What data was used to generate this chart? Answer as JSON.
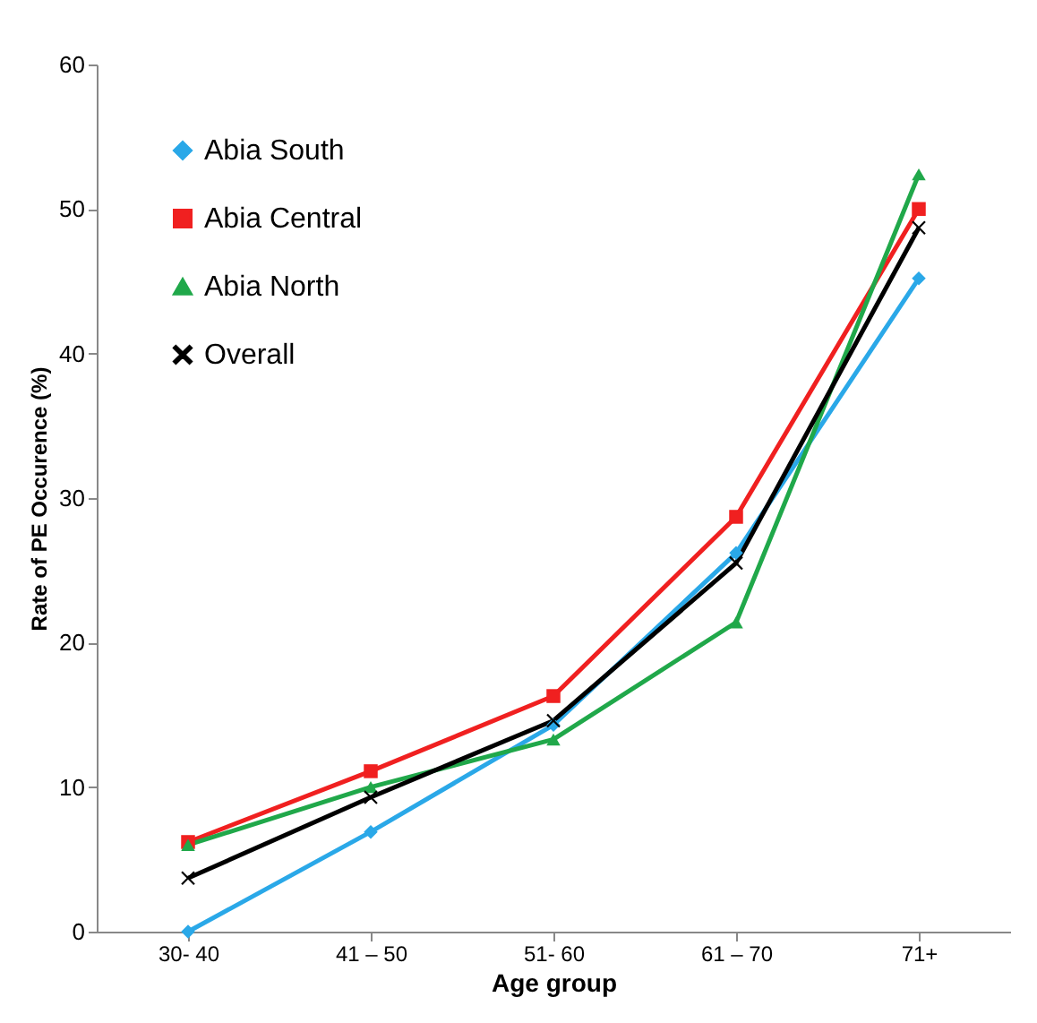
{
  "chart_data": {
    "type": "line",
    "xlabel": "Age group",
    "ylabel": "Rate of PE Occurence (%)",
    "categories": [
      "30- 40",
      "41 – 50",
      "51- 60",
      "61 – 70",
      "71+"
    ],
    "series": [
      {
        "name": "Abia South",
        "color": "#2aa8e8",
        "marker": "diamond",
        "values": [
          0,
          6.9,
          14.3,
          26.2,
          45.2
        ]
      },
      {
        "name": "Abia Central",
        "color": "#f02020",
        "marker": "square",
        "values": [
          6.2,
          11.1,
          16.3,
          28.7,
          50
        ]
      },
      {
        "name": "Abia North",
        "color": "#20a84a",
        "marker": "triangle",
        "values": [
          6.0,
          10,
          13.3,
          21.4,
          52.4
        ]
      },
      {
        "name": "Overall",
        "color": "#000000",
        "marker": "cross",
        "values": [
          3.7,
          9.3,
          14.6,
          25.5,
          48.7
        ]
      }
    ],
    "ylim": [
      0,
      60
    ],
    "yticks": [
      0,
      10,
      20,
      30,
      40,
      50,
      60
    ],
    "grid": false,
    "legend": "top left",
    "line_style": "solid"
  }
}
